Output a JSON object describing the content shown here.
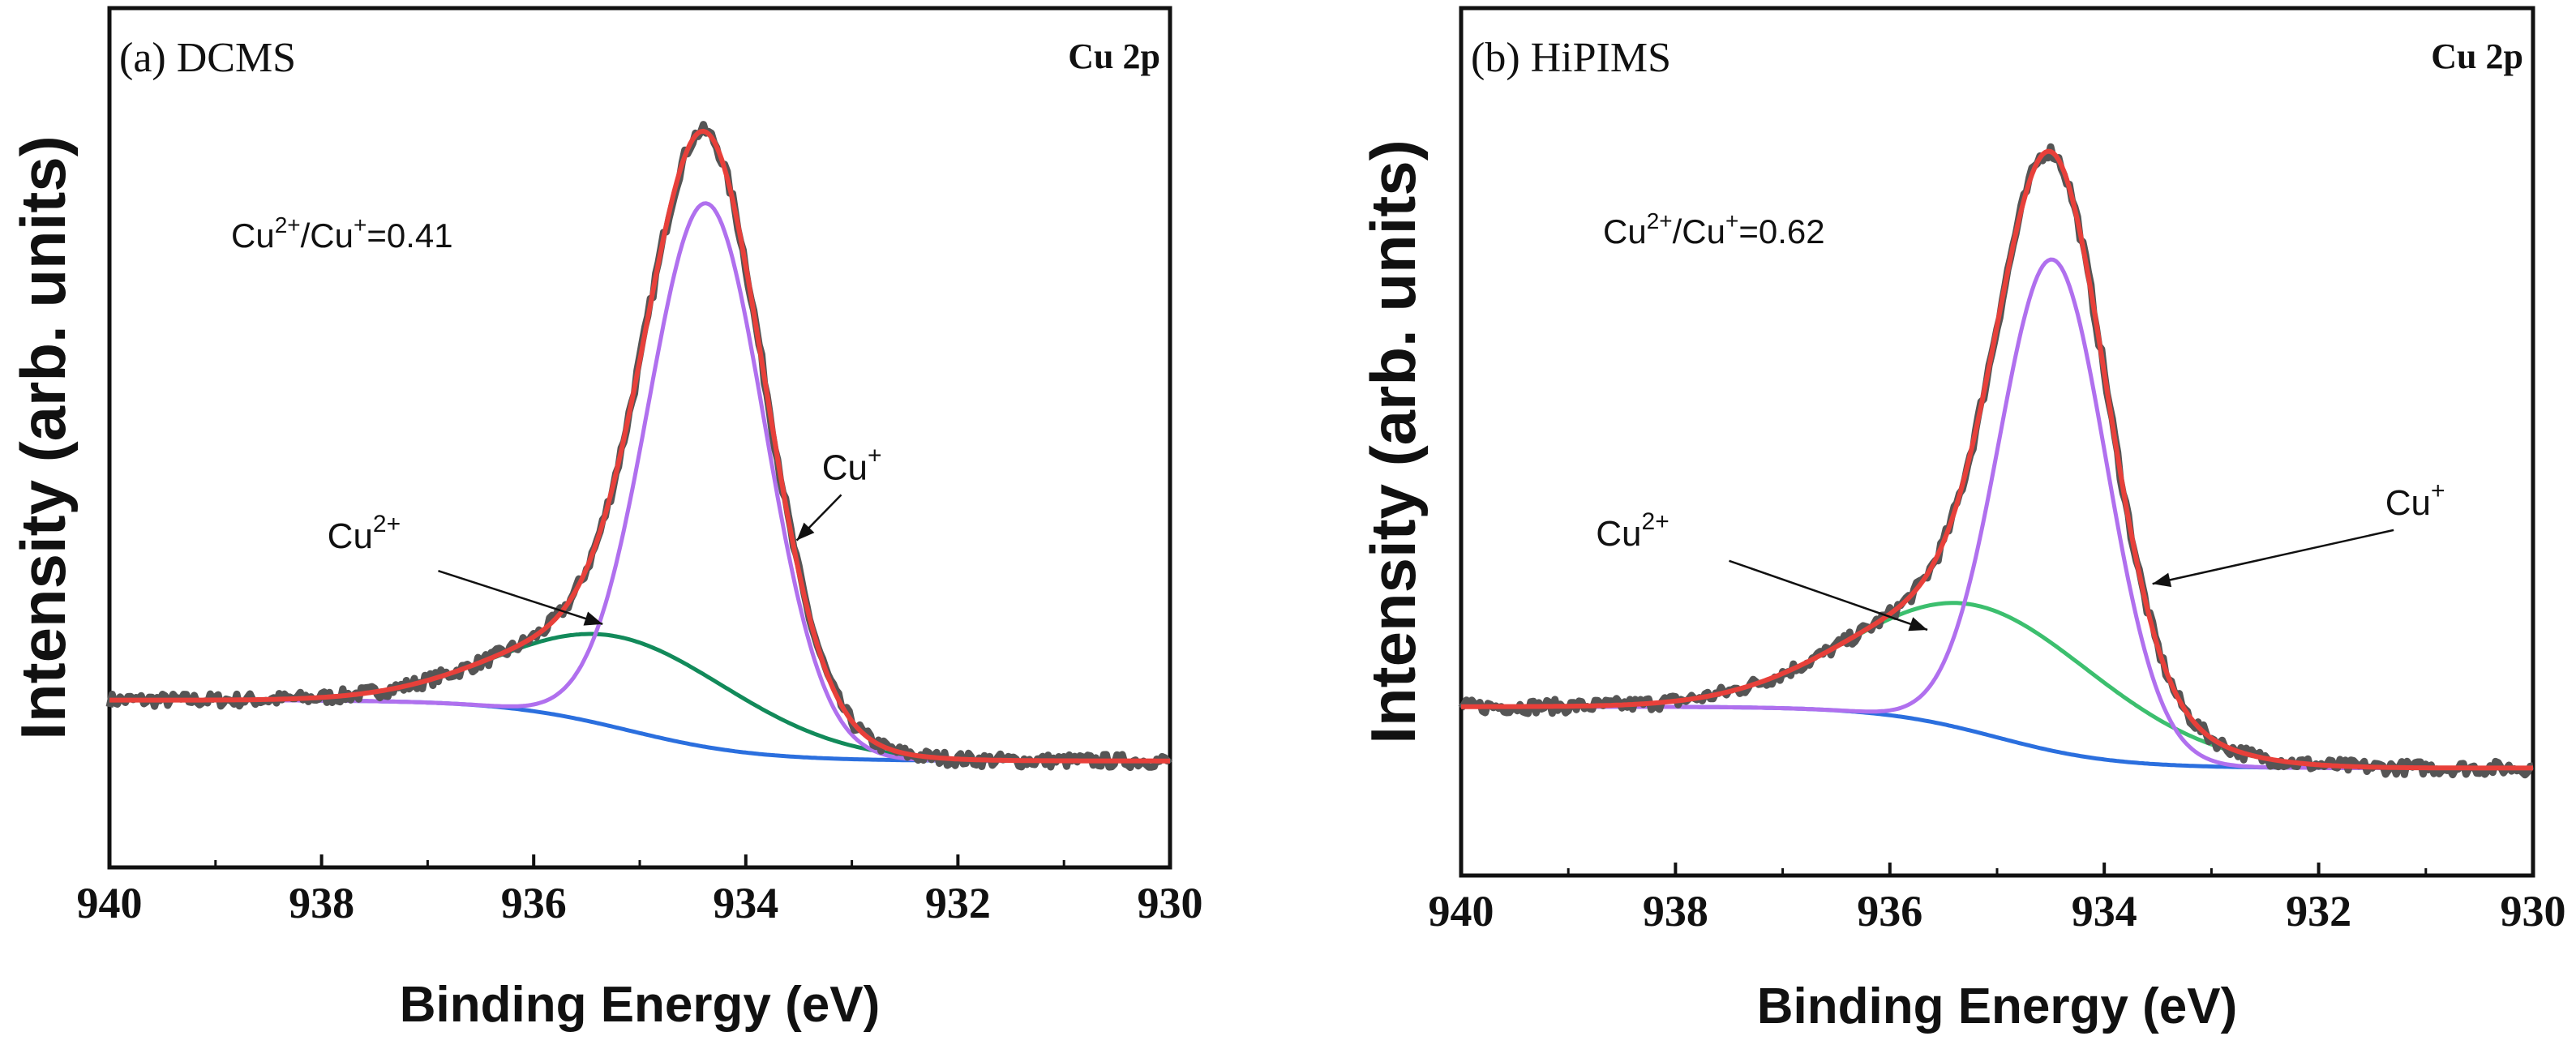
{
  "chart_data": [
    {
      "type": "line",
      "panel_label": "(a)  DCMS",
      "corner_label": "Cu 2p",
      "ratio_label": "Cu2+/Cu+=0.41",
      "ratio_parts": {
        "base": "Cu",
        "sup1": "2+",
        "mid": "/Cu",
        "sup2": "+",
        "tail": "=0.41"
      },
      "xlabel": "Binding Energy (eV)",
      "ylabel": "Intensity (arb. units)",
      "xlim": [
        940,
        930
      ],
      "ylim": [
        0,
        1.13
      ],
      "x_ticks": [
        940,
        938,
        936,
        934,
        932,
        930
      ],
      "x_tick_labels": [
        "940",
        "938",
        "936",
        "934",
        "932",
        "930"
      ],
      "series": [
        {
          "name": "Raw data",
          "color": "#555555",
          "baseline": {
            "y1": 0.22,
            "y2": 0.14,
            "center": 935.1,
            "width": 0.6
          },
          "peaks": [
            {
              "center": 934.37,
              "amp": 0.715,
              "sigma": 0.55
            },
            {
              "center": 935.15,
              "amp": 0.12,
              "sigma": 1.1
            }
          ],
          "noise": true
        },
        {
          "name": "Envelope",
          "color": "#e8403a",
          "baseline": {
            "y1": 0.22,
            "y2": 0.14,
            "center": 935.1,
            "width": 0.6
          },
          "peaks": [
            {
              "center": 934.37,
              "amp": 0.715,
              "sigma": 0.55
            },
            {
              "center": 935.15,
              "amp": 0.12,
              "sigma": 1.1
            }
          ]
        },
        {
          "name": "Cu+",
          "color": "#b070ee",
          "baseline": {
            "y1": 0.22,
            "y2": 0.14,
            "center": 935.1,
            "width": 0.6
          },
          "peaks": [
            {
              "center": 934.37,
              "amp": 0.715,
              "sigma": 0.55
            }
          ]
        },
        {
          "name": "Cu2+",
          "color": "#128a5a",
          "baseline": {
            "y1": 0.22,
            "y2": 0.14,
            "center": 935.1,
            "width": 0.6
          },
          "peaks": [
            {
              "center": 935.15,
              "amp": 0.12,
              "sigma": 1.1
            }
          ]
        },
        {
          "name": "Background",
          "color": "#2b6fde",
          "baseline": {
            "y1": 0.22,
            "y2": 0.14,
            "center": 935.1,
            "width": 0.6
          },
          "peaks": []
        }
      ],
      "annotations": [
        {
          "label": "Cu",
          "sup": "+",
          "text_x": 933.0,
          "text_y": 0.51,
          "arrow_from": [
            933.1,
            0.49
          ],
          "arrow_to": [
            933.52,
            0.43
          ]
        },
        {
          "label": "Cu",
          "sup": "2+",
          "text_x": 937.6,
          "text_y": 0.42,
          "arrow_from": [
            936.9,
            0.39
          ],
          "arrow_to": [
            935.35,
            0.32
          ]
        }
      ]
    },
    {
      "type": "line",
      "panel_label": "(b)  HiPIMS",
      "corner_label": "Cu 2p",
      "ratio_label": "Cu2+/Cu+=0.62",
      "ratio_parts": {
        "base": "Cu",
        "sup1": "2+",
        "mid": "/Cu",
        "sup2": "+",
        "tail": "=0.62"
      },
      "xlabel": "Binding Energy (eV)",
      "ylabel": "Intensity (arb. units)",
      "xlim": [
        940,
        930
      ],
      "ylim": [
        0,
        1.13
      ],
      "x_ticks": [
        940,
        938,
        936,
        934,
        932,
        930
      ],
      "x_tick_labels": [
        "940",
        "938",
        "936",
        "934",
        "932",
        "930"
      ],
      "series": [
        {
          "name": "Raw data",
          "color": "#555555",
          "baseline": {
            "y1": 0.22,
            "y2": 0.14,
            "center": 935.0,
            "width": 0.55
          },
          "peaks": [
            {
              "center": 934.48,
              "amp": 0.64,
              "sigma": 0.5
            },
            {
              "center": 935.15,
              "amp": 0.165,
              "sigma": 1.15
            }
          ],
          "noise": true
        },
        {
          "name": "Envelope",
          "color": "#e8403a",
          "baseline": {
            "y1": 0.22,
            "y2": 0.14,
            "center": 935.0,
            "width": 0.55
          },
          "peaks": [
            {
              "center": 934.48,
              "amp": 0.64,
              "sigma": 0.5
            },
            {
              "center": 935.15,
              "amp": 0.165,
              "sigma": 1.15
            }
          ]
        },
        {
          "name": "Cu+",
          "color": "#b070ee",
          "baseline": {
            "y1": 0.22,
            "y2": 0.14,
            "center": 935.0,
            "width": 0.55
          },
          "peaks": [
            {
              "center": 934.48,
              "amp": 0.64,
              "sigma": 0.5
            }
          ]
        },
        {
          "name": "Cu2+",
          "color": "#3cbf6e",
          "baseline": {
            "y1": 0.22,
            "y2": 0.14,
            "center": 935.0,
            "width": 0.55
          },
          "peaks": [
            {
              "center": 935.15,
              "amp": 0.165,
              "sigma": 1.15
            }
          ]
        },
        {
          "name": "Background",
          "color": "#2b6fde",
          "baseline": {
            "y1": 0.22,
            "y2": 0.14,
            "center": 935.0,
            "width": 0.55
          },
          "peaks": []
        }
      ],
      "annotations": [
        {
          "label": "Cu",
          "sup": "+",
          "text_x": 931.1,
          "text_y": 0.47,
          "arrow_from": [
            931.3,
            0.45
          ],
          "arrow_to": [
            933.55,
            0.38
          ]
        },
        {
          "label": "Cu",
          "sup": "2+",
          "text_x": 938.4,
          "text_y": 0.43,
          "arrow_from": [
            937.5,
            0.41
          ],
          "arrow_to": [
            935.65,
            0.32
          ]
        }
      ]
    }
  ]
}
